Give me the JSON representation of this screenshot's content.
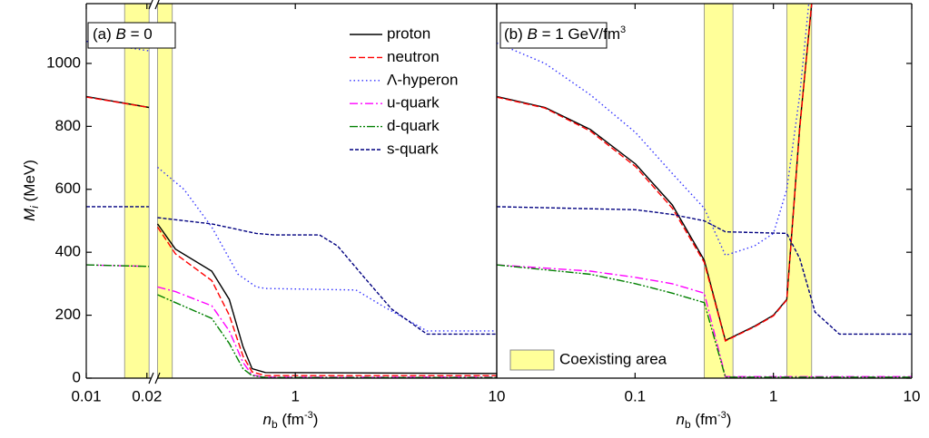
{
  "chart_data": [
    {
      "type": "line",
      "panel_label_parts": [
        "(a) ",
        "B",
        " = 0"
      ],
      "xlabel_parts": [
        "n",
        "b",
        " (fm",
        "-3",
        ")"
      ],
      "ylabel_parts": [
        "M",
        "i",
        " (MeV)"
      ],
      "log_x": true,
      "xsegments": [
        {
          "xlim": [
            0.01,
            0.021
          ],
          "xticks": [
            0.01,
            0.02
          ]
        },
        {
          "xlim": [
            0.207,
            10
          ],
          "xticks": [
            1,
            10
          ]
        }
      ],
      "ylim": [
        0,
        1190
      ],
      "yticks": [
        0,
        200,
        400,
        600,
        800,
        1000
      ],
      "bands": [
        [
          0.0155,
          0.0205
        ],
        [
          0.207,
          0.245
        ]
      ],
      "band_color": "#ffff99",
      "legend": "upper right",
      "series": [
        {
          "name": "proton",
          "color": "#000000",
          "style": "solid",
          "x": [
            0.01,
            0.0205,
            null,
            0.207,
            0.254,
            0.385,
            0.47,
            0.55,
            0.61,
            0.71,
            10
          ],
          "values": [
            895,
            860,
            null,
            490,
            410,
            340,
            250,
            100,
            30,
            18,
            15
          ]
        },
        {
          "name": "neutron",
          "color": "#ff0000",
          "style": "dashed",
          "x": [
            0.01,
            0.0205,
            null,
            0.207,
            0.254,
            0.385,
            0.47,
            0.55,
            0.61,
            0.71,
            10
          ],
          "values": [
            893,
            860,
            null,
            480,
            395,
            310,
            200,
            70,
            20,
            8,
            8
          ]
        },
        {
          "name": "Λ-hyperon",
          "color": "#3333ff",
          "style": "dotted",
          "x": [
            0.01,
            0.0205,
            null,
            0.207,
            0.28,
            0.385,
            0.52,
            0.64,
            0.71,
            2.0,
            2.7,
            4.5,
            10
          ],
          "values": [
            1070,
            1040,
            null,
            670,
            600,
            480,
            330,
            290,
            285,
            280,
            230,
            150,
            150
          ]
        },
        {
          "name": "u-quark",
          "color": "#ff00ff",
          "style": "dashdot",
          "x": [
            0.01,
            0.0205,
            null,
            0.207,
            0.254,
            0.385,
            0.47,
            0.55,
            0.61,
            0.71,
            10
          ],
          "values": [
            360,
            355,
            null,
            290,
            275,
            230,
            150,
            50,
            10,
            3,
            3
          ]
        },
        {
          "name": "d-quark",
          "color": "#008000",
          "style": "dashdotdot",
          "x": [
            0.01,
            0.0205,
            null,
            0.207,
            0.254,
            0.385,
            0.47,
            0.55,
            0.61,
            0.71,
            10
          ],
          "values": [
            360,
            355,
            null,
            265,
            240,
            190,
            110,
            30,
            8,
            2,
            2
          ]
        },
        {
          "name": "s-quark",
          "color": "#000080",
          "style": "shortdash",
          "x": [
            0.01,
            0.0205,
            null,
            0.207,
            0.385,
            0.64,
            0.79,
            1.32,
            1.62,
            2.2,
            3.0,
            4.5,
            10
          ],
          "values": [
            545,
            545,
            null,
            510,
            490,
            460,
            455,
            455,
            420,
            320,
            220,
            140,
            140
          ]
        }
      ]
    },
    {
      "type": "line",
      "panel_label_parts": [
        "(b) ",
        "B",
        " = 1 GeV/fm",
        "3"
      ],
      "xlabel_parts": [
        "n",
        "b",
        " (fm",
        "-3",
        ")"
      ],
      "log_x": true,
      "xlim": [
        0.01,
        10
      ],
      "xticks": [
        0.1,
        1,
        10
      ],
      "ylim": [
        0,
        1190
      ],
      "yticks": [
        0,
        200,
        400,
        600,
        800,
        1000
      ],
      "bands": [
        [
          0.316,
          0.51
        ],
        [
          1.25,
          1.89
        ]
      ],
      "band_color": "#ffff99",
      "band_label": "Coexisting area",
      "series": [
        {
          "color": "#000000",
          "style": "solid",
          "x": [
            0.01,
            0.0223,
            0.0476,
            0.101,
            0.186,
            0.316,
            0.45,
            0.73,
            1.0,
            1.25,
            1.55,
            1.89
          ],
          "values": [
            895,
            860,
            790,
            680,
            550,
            375,
            120,
            165,
            200,
            250,
            800,
            1190
          ]
        },
        {
          "color": "#ff0000",
          "style": "dashed",
          "x": [
            0.01,
            0.0223,
            0.0476,
            0.101,
            0.186,
            0.316,
            0.45,
            0.73,
            1.0,
            1.25,
            1.55,
            1.89
          ],
          "values": [
            893,
            858,
            785,
            672,
            540,
            368,
            118,
            163,
            198,
            248,
            795,
            1190
          ]
        },
        {
          "color": "#3333ff",
          "style": "dotted",
          "x": [
            0.01,
            0.0223,
            0.0476,
            0.101,
            0.186,
            0.316,
            0.45,
            0.73,
            1.0,
            1.25,
            1.55,
            1.8
          ],
          "values": [
            1065,
            1000,
            900,
            780,
            650,
            540,
            390,
            420,
            460,
            600,
            900,
            1190
          ]
        },
        {
          "color": "#ff00ff",
          "style": "dashdot",
          "x": [
            0.01,
            0.0476,
            0.101,
            0.186,
            0.316,
            0.45,
            10
          ],
          "values": [
            360,
            340,
            320,
            300,
            270,
            5,
            5
          ]
        },
        {
          "color": "#008000",
          "style": "dashdotdot",
          "x": [
            0.01,
            0.0476,
            0.101,
            0.186,
            0.316,
            0.45,
            10
          ],
          "values": [
            360,
            330,
            300,
            270,
            240,
            3,
            3
          ]
        },
        {
          "color": "#000080",
          "style": "shortdash",
          "x": [
            0.01,
            0.101,
            0.186,
            0.316,
            0.45,
            1.25,
            1.55,
            2.0,
            3.0,
            10
          ],
          "values": [
            545,
            535,
            520,
            500,
            465,
            460,
            380,
            210,
            140,
            140
          ]
        }
      ]
    }
  ]
}
